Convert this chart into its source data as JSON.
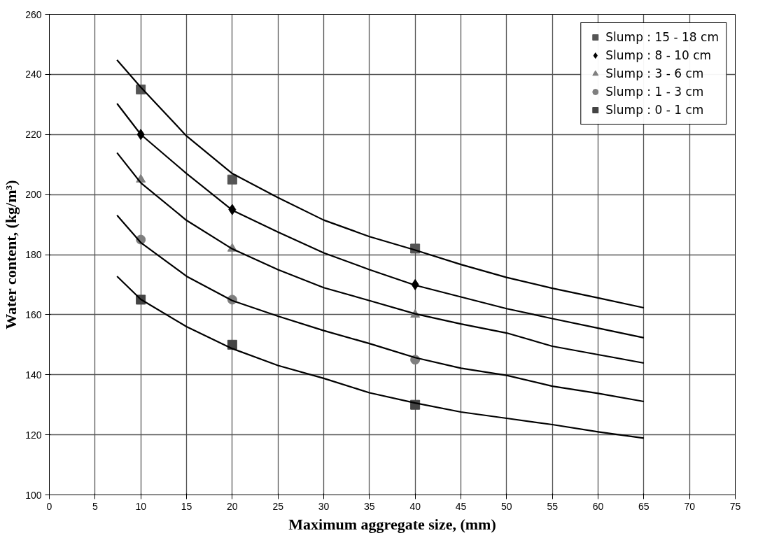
{
  "chart_data": {
    "type": "scatter",
    "xlabel": "Maximum aggregate size, (mm)",
    "ylabel": "Water content, (kg/m³)",
    "x": [
      10,
      20,
      40
    ],
    "series": [
      {
        "name": "Slump : 15 - 18 cm",
        "color": "#555555",
        "marker": "square",
        "values": [
          235,
          205,
          182
        ]
      },
      {
        "name": "Slump : 8 - 10 cm",
        "color": "#000000",
        "marker": "diamond",
        "values": [
          220,
          195,
          170
        ]
      },
      {
        "name": "Slump : 3 - 6 cm",
        "color": "#7f7f7f",
        "marker": "triangle",
        "values": [
          205,
          182,
          160
        ]
      },
      {
        "name": "Slump : 1 - 3 cm",
        "color": "#7f7f7f",
        "marker": "circle",
        "values": [
          185,
          165,
          145
        ]
      },
      {
        "name": "Slump : 0 - 1 cm",
        "color": "#444444",
        "marker": "square",
        "values": [
          165,
          150,
          130
        ]
      },
      {
        "type": "line",
        "color": "#000000",
        "x": [
          7.4,
          10,
          15,
          20,
          25,
          30,
          35,
          40,
          45,
          50,
          55,
          60,
          65
        ],
        "values": [
          244.8,
          235.7,
          219.5,
          207,
          199,
          191.5,
          186,
          181.5,
          176.7,
          172.4,
          168.8,
          165.6,
          162.3
        ]
      },
      {
        "type": "line",
        "color": "#000000",
        "x": [
          7.4,
          10,
          15,
          20,
          25,
          30,
          35,
          40,
          45,
          50,
          55,
          60,
          65
        ],
        "values": [
          230.3,
          220,
          207,
          194.8,
          187.5,
          180.6,
          175,
          169.8,
          165.9,
          162,
          158.7,
          155.5,
          152.3
        ]
      },
      {
        "type": "line",
        "color": "#000000",
        "x": [
          7.4,
          10,
          15,
          20,
          25,
          30,
          35,
          40,
          45,
          50,
          55,
          60,
          65
        ],
        "values": [
          213.9,
          203.9,
          191.4,
          181.9,
          175,
          169,
          164.7,
          160.3,
          156.9,
          153.9,
          149.5,
          146.7,
          143.9
        ]
      },
      {
        "type": "line",
        "color": "#000000",
        "x": [
          7.4,
          10,
          15,
          20,
          25,
          30,
          35,
          40,
          45,
          50,
          55,
          60,
          65
        ],
        "values": [
          193.1,
          184,
          172.8,
          164.7,
          159.5,
          154.7,
          150.4,
          145.7,
          142.2,
          139.8,
          136.2,
          133.8,
          131.1
        ]
      },
      {
        "type": "line",
        "color": "#000000",
        "x": [
          7.4,
          10,
          15,
          20,
          25,
          30,
          35,
          40,
          45,
          50,
          55,
          60,
          65
        ],
        "values": [
          172.8,
          165.1,
          156,
          148.7,
          143.1,
          138.8,
          134,
          130.6,
          127.6,
          125.5,
          123.4,
          121,
          118.9
        ]
      }
    ],
    "xlim": [
      0,
      75
    ],
    "xticks": [
      0,
      5,
      10,
      15,
      20,
      25,
      30,
      35,
      40,
      45,
      50,
      55,
      60,
      65,
      70,
      75
    ],
    "ylim": [
      100,
      260
    ],
    "yticks": [
      100,
      120,
      140,
      160,
      180,
      200,
      220,
      240,
      260
    ],
    "grid": true,
    "legend": "top right",
    "line_style": "solid"
  }
}
